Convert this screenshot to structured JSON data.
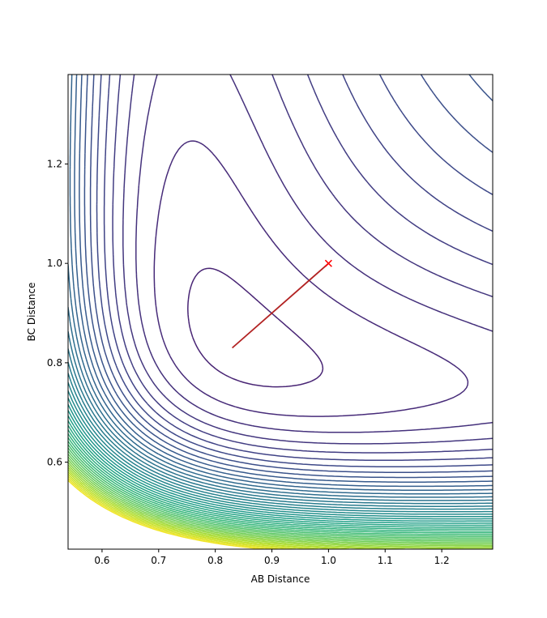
{
  "chart_data": {
    "type": "contour",
    "title": "",
    "xlabel": "AB Distance",
    "ylabel": "BC Distance",
    "xlim": [
      0.54,
      1.29
    ],
    "ylim": [
      0.425,
      1.38
    ],
    "xticks": [
      0.6,
      0.7,
      0.8,
      0.9,
      1.0,
      1.1,
      1.2
    ],
    "xtick_labels": [
      "0.6",
      "0.7",
      "0.8",
      "0.9",
      "1.0",
      "1.1",
      "1.2"
    ],
    "yticks": [
      0.6,
      0.8,
      1.0,
      1.2
    ],
    "ytick_labels": [
      "0.6",
      "0.8",
      "1.0",
      "1.2"
    ],
    "grid": false,
    "colormap": "viridis",
    "contour_levels": 50,
    "potential": {
      "model": "LEPS-like surface with AB and BC wells",
      "well_depth": 1.0,
      "equilibrium_distance": 0.75,
      "min_value": -1.8,
      "max_value": 2.8
    },
    "trajectory": {
      "color": "#b22222",
      "marker_color": "#ff0000",
      "marker": "x",
      "points": [
        {
          "x": 0.83,
          "y": 0.83
        },
        {
          "x": 1.0,
          "y": 1.0
        }
      ]
    }
  }
}
